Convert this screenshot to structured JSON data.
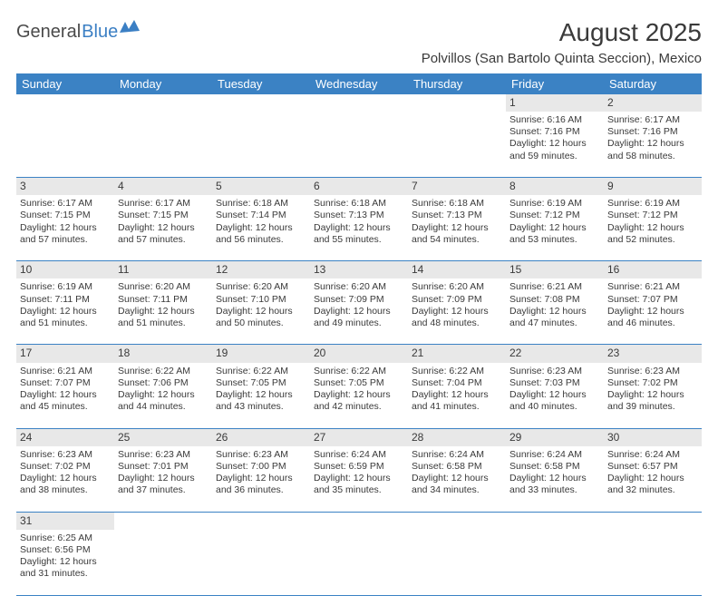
{
  "logo": {
    "part1": "General",
    "part2": "Blue"
  },
  "title": "August 2025",
  "location": "Polvillos (San Bartolo Quinta Seccion), Mexico",
  "colors": {
    "header_bg": "#3b82c4",
    "header_text": "#ffffff",
    "daynum_bg": "#e8e8e8",
    "text": "#3a3a3a",
    "rule": "#3b82c4",
    "logo_gray": "#4a4a4a",
    "logo_blue": "#3b7fc4"
  },
  "daysOfWeek": [
    "Sunday",
    "Monday",
    "Tuesday",
    "Wednesday",
    "Thursday",
    "Friday",
    "Saturday"
  ],
  "weeks": [
    [
      null,
      null,
      null,
      null,
      null,
      {
        "n": "1",
        "sunrise": "6:16 AM",
        "sunset": "7:16 PM",
        "dlh": "12",
        "dlm": "59"
      },
      {
        "n": "2",
        "sunrise": "6:17 AM",
        "sunset": "7:16 PM",
        "dlh": "12",
        "dlm": "58"
      }
    ],
    [
      {
        "n": "3",
        "sunrise": "6:17 AM",
        "sunset": "7:15 PM",
        "dlh": "12",
        "dlm": "57"
      },
      {
        "n": "4",
        "sunrise": "6:17 AM",
        "sunset": "7:15 PM",
        "dlh": "12",
        "dlm": "57"
      },
      {
        "n": "5",
        "sunrise": "6:18 AM",
        "sunset": "7:14 PM",
        "dlh": "12",
        "dlm": "56"
      },
      {
        "n": "6",
        "sunrise": "6:18 AM",
        "sunset": "7:13 PM",
        "dlh": "12",
        "dlm": "55"
      },
      {
        "n": "7",
        "sunrise": "6:18 AM",
        "sunset": "7:13 PM",
        "dlh": "12",
        "dlm": "54"
      },
      {
        "n": "8",
        "sunrise": "6:19 AM",
        "sunset": "7:12 PM",
        "dlh": "12",
        "dlm": "53"
      },
      {
        "n": "9",
        "sunrise": "6:19 AM",
        "sunset": "7:12 PM",
        "dlh": "12",
        "dlm": "52"
      }
    ],
    [
      {
        "n": "10",
        "sunrise": "6:19 AM",
        "sunset": "7:11 PM",
        "dlh": "12",
        "dlm": "51"
      },
      {
        "n": "11",
        "sunrise": "6:20 AM",
        "sunset": "7:11 PM",
        "dlh": "12",
        "dlm": "51"
      },
      {
        "n": "12",
        "sunrise": "6:20 AM",
        "sunset": "7:10 PM",
        "dlh": "12",
        "dlm": "50"
      },
      {
        "n": "13",
        "sunrise": "6:20 AM",
        "sunset": "7:09 PM",
        "dlh": "12",
        "dlm": "49"
      },
      {
        "n": "14",
        "sunrise": "6:20 AM",
        "sunset": "7:09 PM",
        "dlh": "12",
        "dlm": "48"
      },
      {
        "n": "15",
        "sunrise": "6:21 AM",
        "sunset": "7:08 PM",
        "dlh": "12",
        "dlm": "47"
      },
      {
        "n": "16",
        "sunrise": "6:21 AM",
        "sunset": "7:07 PM",
        "dlh": "12",
        "dlm": "46"
      }
    ],
    [
      {
        "n": "17",
        "sunrise": "6:21 AM",
        "sunset": "7:07 PM",
        "dlh": "12",
        "dlm": "45"
      },
      {
        "n": "18",
        "sunrise": "6:22 AM",
        "sunset": "7:06 PM",
        "dlh": "12",
        "dlm": "44"
      },
      {
        "n": "19",
        "sunrise": "6:22 AM",
        "sunset": "7:05 PM",
        "dlh": "12",
        "dlm": "43"
      },
      {
        "n": "20",
        "sunrise": "6:22 AM",
        "sunset": "7:05 PM",
        "dlh": "12",
        "dlm": "42"
      },
      {
        "n": "21",
        "sunrise": "6:22 AM",
        "sunset": "7:04 PM",
        "dlh": "12",
        "dlm": "41"
      },
      {
        "n": "22",
        "sunrise": "6:23 AM",
        "sunset": "7:03 PM",
        "dlh": "12",
        "dlm": "40"
      },
      {
        "n": "23",
        "sunrise": "6:23 AM",
        "sunset": "7:02 PM",
        "dlh": "12",
        "dlm": "39"
      }
    ],
    [
      {
        "n": "24",
        "sunrise": "6:23 AM",
        "sunset": "7:02 PM",
        "dlh": "12",
        "dlm": "38"
      },
      {
        "n": "25",
        "sunrise": "6:23 AM",
        "sunset": "7:01 PM",
        "dlh": "12",
        "dlm": "37"
      },
      {
        "n": "26",
        "sunrise": "6:23 AM",
        "sunset": "7:00 PM",
        "dlh": "12",
        "dlm": "36"
      },
      {
        "n": "27",
        "sunrise": "6:24 AM",
        "sunset": "6:59 PM",
        "dlh": "12",
        "dlm": "35"
      },
      {
        "n": "28",
        "sunrise": "6:24 AM",
        "sunset": "6:58 PM",
        "dlh": "12",
        "dlm": "34"
      },
      {
        "n": "29",
        "sunrise": "6:24 AM",
        "sunset": "6:58 PM",
        "dlh": "12",
        "dlm": "33"
      },
      {
        "n": "30",
        "sunrise": "6:24 AM",
        "sunset": "6:57 PM",
        "dlh": "12",
        "dlm": "32"
      }
    ],
    [
      {
        "n": "31",
        "sunrise": "6:25 AM",
        "sunset": "6:56 PM",
        "dlh": "12",
        "dlm": "31"
      },
      null,
      null,
      null,
      null,
      null,
      null
    ]
  ],
  "labels": {
    "sunrise": "Sunrise:",
    "sunset": "Sunset:",
    "daylight_prefix": "Daylight:",
    "hours_word": "hours",
    "and_word": "and",
    "minutes_word": "minutes."
  }
}
